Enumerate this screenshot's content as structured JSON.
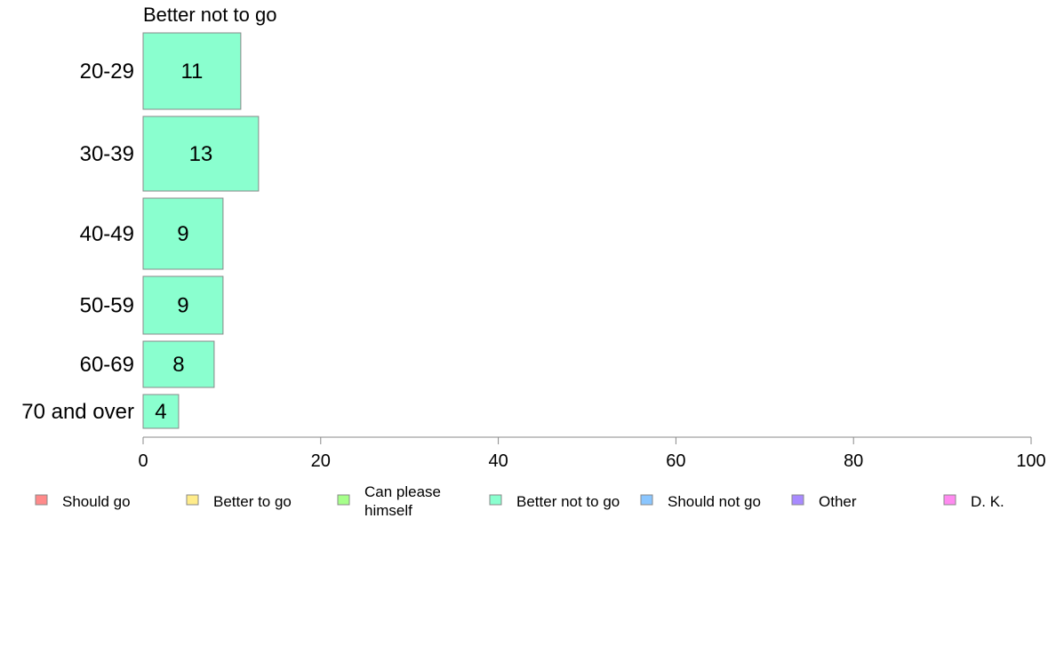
{
  "chart_data": {
    "type": "bar",
    "orientation": "horizontal",
    "title": "Better not to go",
    "categories": [
      "20-29",
      "30-39",
      "40-49",
      "50-59",
      "60-69",
      "70 and over"
    ],
    "series": [
      {
        "name": "Better not to go",
        "values": [
          11,
          13,
          9,
          9,
          8,
          4
        ],
        "color": "#8affcf"
      }
    ],
    "xlim": [
      0,
      100
    ],
    "xticks": [
      "0",
      "20",
      "40",
      "60",
      "80",
      "100"
    ],
    "xlabel": "",
    "ylabel": "",
    "grid": false,
    "legend_position": "bottom",
    "legend": [
      {
        "label": "Should go",
        "color": "#ff8a8a"
      },
      {
        "label": "Better to go",
        "color": "#ffec8a"
      },
      {
        "label": "Can please himself",
        "lines": [
          "Can please",
          "himself"
        ],
        "color": "#a6ff8a"
      },
      {
        "label": "Better not to go",
        "color": "#8affcf"
      },
      {
        "label": "Should not go",
        "color": "#8ac6ff"
      },
      {
        "label": "Other",
        "color": "#a88aff"
      },
      {
        "label": "D. K.",
        "color": "#ff8af0"
      }
    ]
  }
}
